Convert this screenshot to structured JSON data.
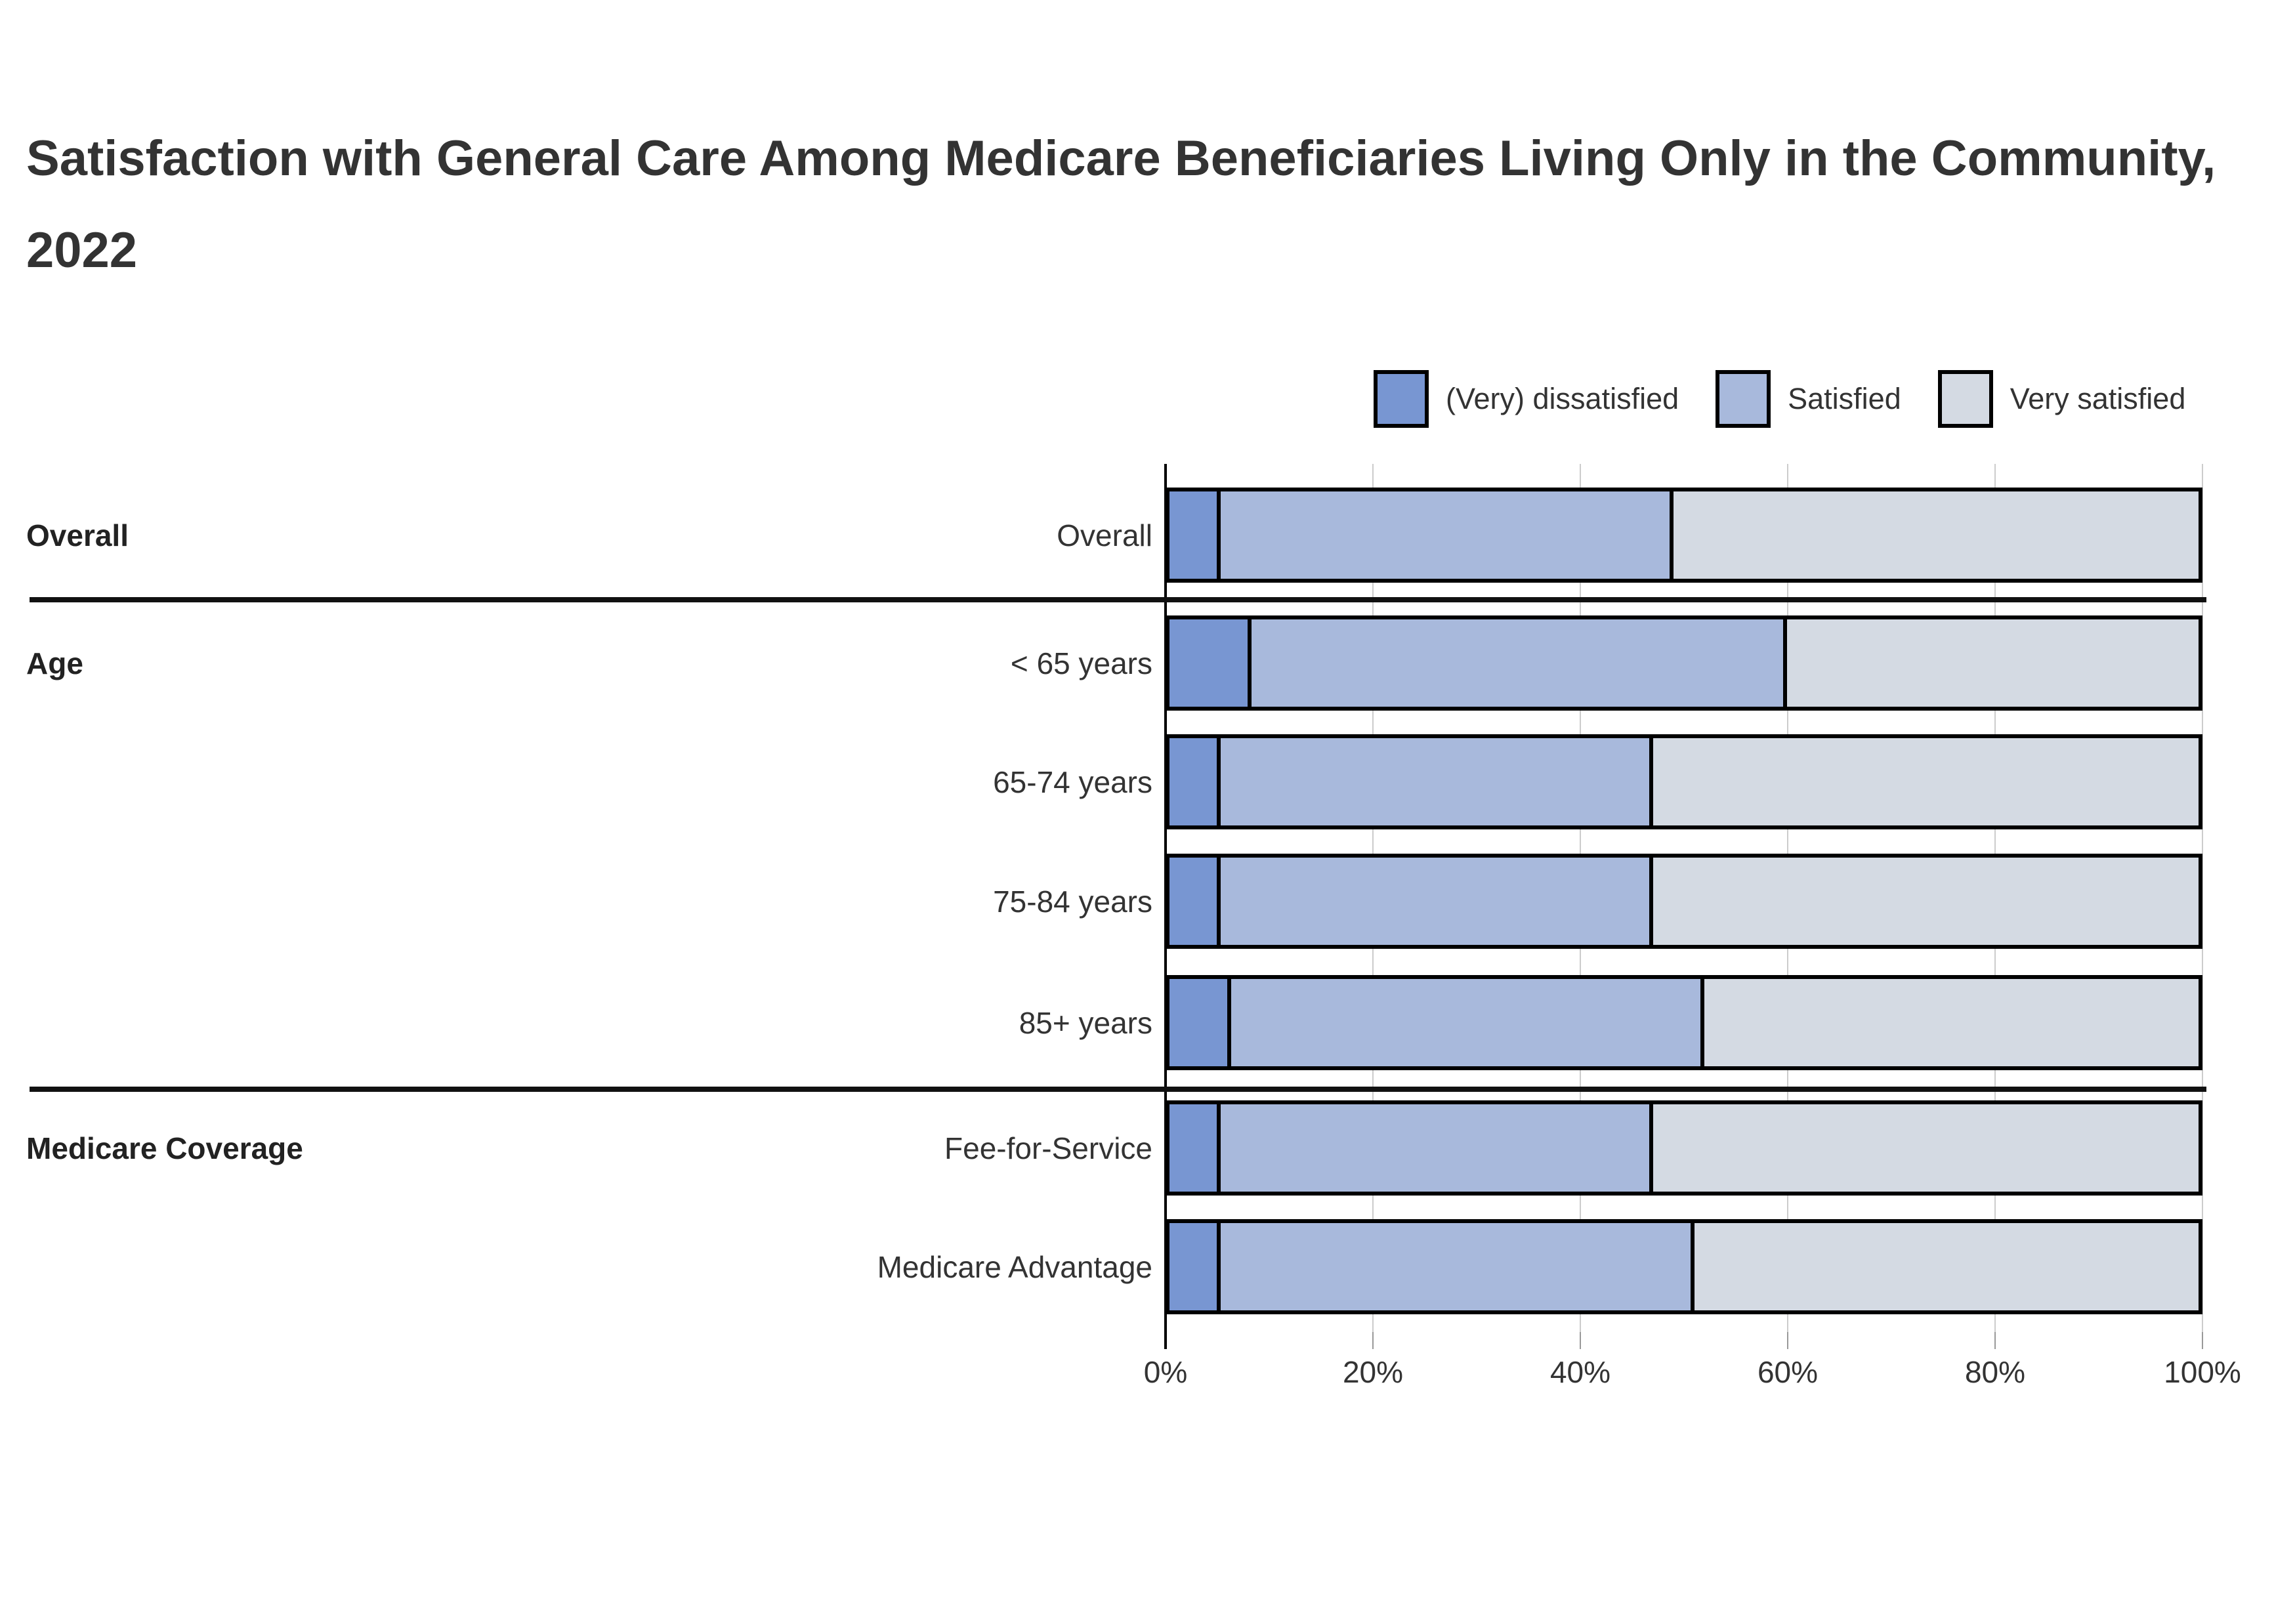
{
  "title": "Satisfaction with General Care Among Medicare Beneficiaries Living Only in the Community, 2022",
  "legend": [
    {
      "label": "(Very) dissatisfied",
      "color": "#7896d2"
    },
    {
      "label": "Satisfied",
      "color": "#a8b9dc"
    },
    {
      "label": "Very satisfied",
      "color": "#d4dae3"
    }
  ],
  "chart_data": {
    "type": "bar",
    "stacked": true,
    "orientation": "horizontal",
    "unit": "percent",
    "xlim": [
      0,
      100
    ],
    "grid": true,
    "legend_position": "top-right",
    "series_names": [
      "(Very) dissatisfied",
      "Satisfied",
      "Very satisfied"
    ],
    "colors": [
      "#7896d2",
      "#a8b9dc",
      "#d4dae3"
    ],
    "xticks": [
      "0%",
      "20%",
      "40%",
      "60%",
      "80%",
      "100%"
    ],
    "groups": [
      {
        "label": "Overall",
        "rows": [
          {
            "label": "Overall",
            "values": [
              5,
              44,
              51
            ]
          }
        ]
      },
      {
        "label": "Age",
        "rows": [
          {
            "label": "< 65 years",
            "values": [
              8,
              52,
              40
            ]
          },
          {
            "label": "65-74 years",
            "values": [
              5,
              42,
              53
            ]
          },
          {
            "label": "75-84 years",
            "values": [
              5,
              42,
              53
            ]
          },
          {
            "label": "85+ years",
            "values": [
              6,
              46,
              48
            ]
          }
        ]
      },
      {
        "label": "Medicare Coverage",
        "rows": [
          {
            "label": "Fee-for-Service",
            "values": [
              5,
              42,
              53
            ]
          },
          {
            "label": "Medicare Advantage",
            "values": [
              5,
              46,
              49
            ]
          }
        ]
      }
    ]
  }
}
